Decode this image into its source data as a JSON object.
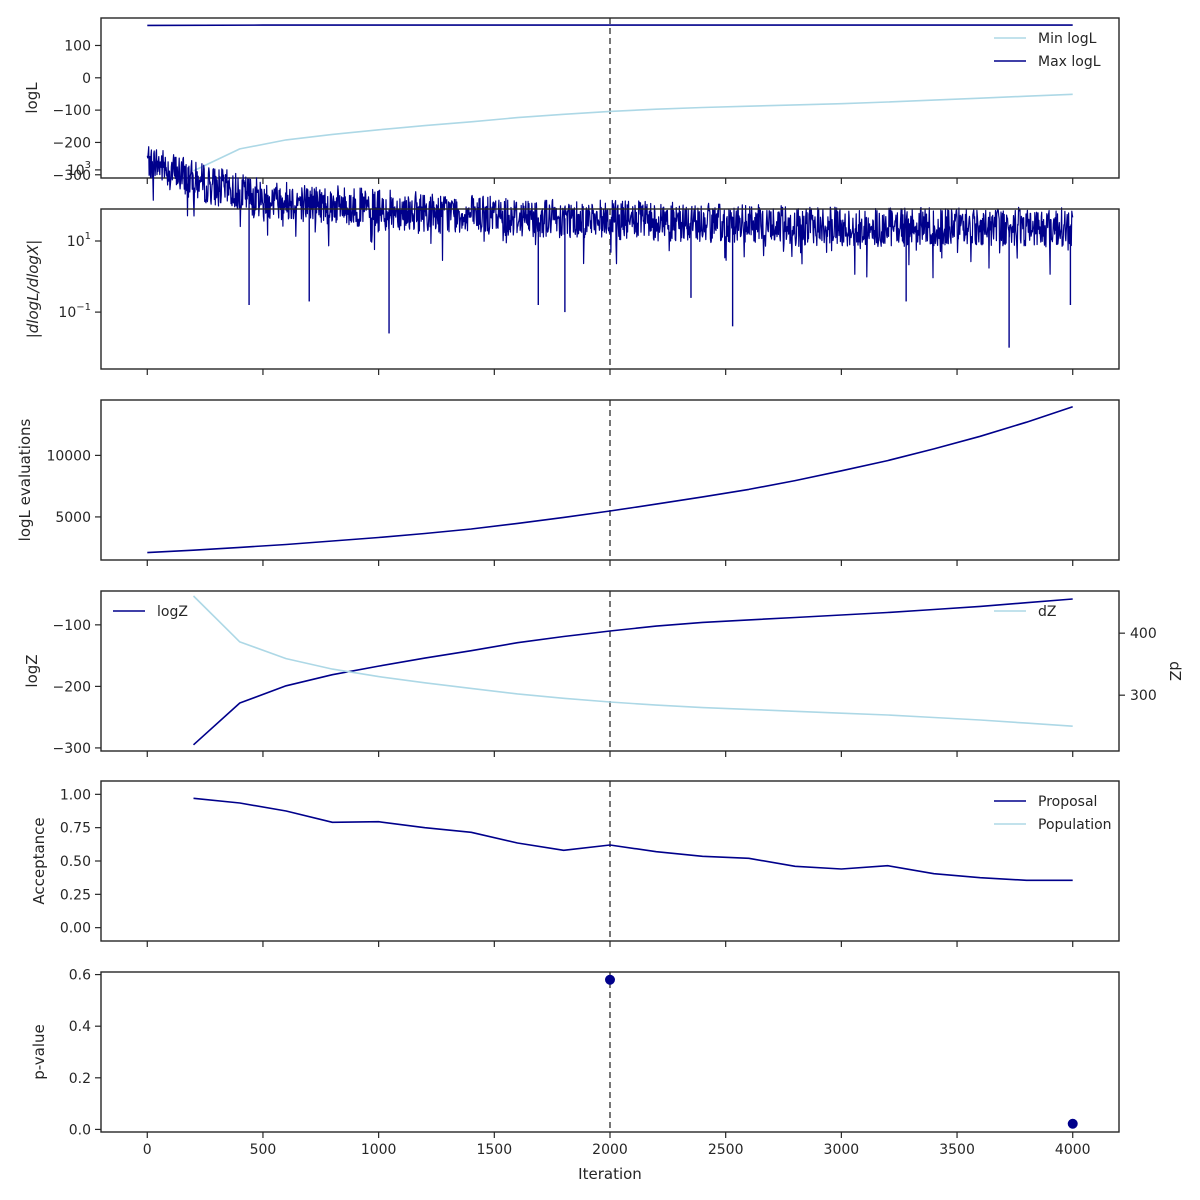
{
  "colors": {
    "dark": "#00008b",
    "light": "#add8e6",
    "marker_line": "#555555",
    "frame": "#262626"
  },
  "xaxis": {
    "label": "Iteration",
    "xlim": [
      -200,
      4200
    ],
    "ticks": [
      0,
      500,
      1000,
      1500,
      2000,
      2500,
      3000,
      3500,
      4000
    ],
    "tick_labels": [
      "0",
      "500",
      "1000",
      "1500",
      "2000",
      "2500",
      "3000",
      "3500",
      "4000"
    ]
  },
  "vline_x": 2000,
  "chart_data": [
    {
      "type": "line",
      "ylabel": "logL",
      "ylim": [
        -310,
        185
      ],
      "yticks": [
        -300,
        -200,
        -100,
        0,
        100
      ],
      "ytick_labels": [
        "−300",
        "−200",
        "−100",
        "0",
        "100"
      ],
      "legend_placement": "top-right",
      "series": [
        {
          "name": "Min logL",
          "color": "light",
          "x": [
            200,
            400,
            600,
            800,
            1000,
            1200,
            1400,
            1600,
            1800,
            2000,
            2200,
            2400,
            2600,
            2800,
            3000,
            3200,
            3400,
            3600,
            3800,
            4000
          ],
          "y": [
            -288,
            -220,
            -192,
            -175,
            -161,
            -148,
            -136,
            -123,
            -113,
            -104,
            -97,
            -92,
            -88,
            -84,
            -80,
            -75,
            -69,
            -63,
            -57,
            -51
          ]
        },
        {
          "name": "Max logL",
          "color": "dark",
          "x": [
            0,
            500,
            1000,
            1500,
            2000,
            2500,
            3000,
            3500,
            4000
          ],
          "y": [
            162,
            163,
            163,
            163,
            163,
            163,
            163,
            163,
            163
          ]
        }
      ]
    },
    {
      "type": "line",
      "ylabel": "|dlogL/dlogX|",
      "yscale": "log",
      "ylim_log10": [
        -2.6,
        1.9
      ],
      "yticks_log10": [
        -1,
        1,
        3
      ],
      "ytick_exponents": [
        "−1",
        "1",
        "3"
      ],
      "ytick_base": "10",
      "series": [
        {
          "name": "",
          "color": "dark",
          "envelope_log10": {
            "x": [
              0,
              200,
              500,
              1000,
              1500,
              2000,
              2500,
              3000,
              3500,
              4000
            ],
            "center": [
              3.3,
              2.7,
              2.2,
              1.9,
              1.7,
              1.6,
              1.5,
              1.4,
              1.4,
              1.4
            ],
            "spread": [
              0.5,
              0.55,
              0.55,
              0.55,
              0.55,
              0.55,
              0.55,
              0.55,
              0.55,
              0.55
            ]
          },
          "dips": [
            {
              "x": 440,
              "log10": -0.8
            },
            {
              "x": 700,
              "log10": -0.7
            },
            {
              "x": 1045,
              "log10": -1.6
            },
            {
              "x": 1690,
              "log10": -0.8
            },
            {
              "x": 1805,
              "log10": -1.0
            },
            {
              "x": 2350,
              "log10": -0.6
            },
            {
              "x": 2530,
              "log10": -1.4
            },
            {
              "x": 3280,
              "log10": -0.7
            },
            {
              "x": 3725,
              "log10": -2.0
            },
            {
              "x": 3990,
              "log10": -0.8
            }
          ]
        }
      ]
    },
    {
      "type": "line",
      "ylabel": "logL evaluations",
      "ylim": [
        1500,
        14500
      ],
      "yticks": [
        5000,
        10000
      ],
      "ytick_labels": [
        "5000",
        "10000"
      ],
      "series": [
        {
          "name": "",
          "color": "dark",
          "x": [
            0,
            200,
            400,
            600,
            800,
            1000,
            1200,
            1400,
            1600,
            1800,
            2000,
            2200,
            2400,
            2600,
            2800,
            3000,
            3200,
            3400,
            3600,
            3800,
            4000
          ],
          "y": [
            2100,
            2300,
            2520,
            2760,
            3040,
            3330,
            3650,
            4020,
            4470,
            4960,
            5480,
            6040,
            6630,
            7240,
            7950,
            8750,
            9580,
            10530,
            11550,
            12700,
            13950
          ]
        }
      ]
    },
    {
      "type": "line",
      "ylabel": "logZ",
      "ylim": [
        -305,
        -45
      ],
      "yticks": [
        -300,
        -200,
        -100
      ],
      "ytick_labels": [
        "−300",
        "−200",
        "−100"
      ],
      "legend_placement": "top-left",
      "series": [
        {
          "name": "logZ",
          "color": "dark",
          "x": [
            200,
            400,
            600,
            800,
            1000,
            1200,
            1400,
            1600,
            1800,
            2000,
            2200,
            2400,
            2600,
            2800,
            3000,
            3200,
            3400,
            3600,
            3800,
            4000
          ],
          "y": [
            -295,
            -227,
            -199,
            -181,
            -167,
            -154,
            -142,
            -129,
            -119,
            -110,
            -102,
            -96,
            -92,
            -88,
            -84,
            -80,
            -75,
            -70,
            -64,
            -58
          ]
        }
      ],
      "twin": {
        "ylabel": "dZ",
        "ylim": [
          210,
          468
        ],
        "yticks": [
          300,
          400
        ],
        "ytick_labels": [
          "300",
          "400"
        ],
        "legend_placement": "top-right",
        "series": [
          {
            "name": "dZ",
            "color": "light",
            "x": [
              200,
              400,
              600,
              800,
              1000,
              1200,
              1400,
              1600,
              1800,
              2000,
              2200,
              2400,
              2600,
              2800,
              3000,
              3200,
              3400,
              3600,
              3800,
              4000
            ],
            "y": [
              460,
              386,
              359,
              342,
              330,
              320,
              311,
              302,
              295,
              289,
              284,
              280,
              277,
              274,
              271,
              268,
              264,
              260,
              255,
              250
            ]
          }
        ]
      }
    },
    {
      "type": "line",
      "ylabel": "Acceptance",
      "ylim": [
        -0.1,
        1.1
      ],
      "yticks": [
        0.0,
        0.25,
        0.5,
        0.75,
        1.0
      ],
      "ytick_labels": [
        "0.00",
        "0.25",
        "0.50",
        "0.75",
        "1.00"
      ],
      "legend_placement": "top-right",
      "series": [
        {
          "name": "Proposal",
          "color": "dark",
          "x": [
            200,
            400,
            600,
            800,
            1000,
            1200,
            1400,
            1600,
            1800,
            2000,
            2200,
            2400,
            2600,
            2800,
            3000,
            3200,
            3400,
            3600,
            3800,
            4000
          ],
          "y": [
            0.97,
            0.935,
            0.875,
            0.79,
            0.795,
            0.75,
            0.715,
            0.635,
            0.58,
            0.62,
            0.57,
            0.535,
            0.52,
            0.46,
            0.44,
            0.465,
            0.405,
            0.375,
            0.355,
            0.355
          ]
        },
        {
          "name": "Population",
          "color": "light",
          "x": [],
          "y": []
        }
      ]
    },
    {
      "type": "scatter",
      "ylabel": "p-value",
      "ylim": [
        -0.01,
        0.61
      ],
      "yticks": [
        0.0,
        0.2,
        0.4,
        0.6
      ],
      "ytick_labels": [
        "0.0",
        "0.2",
        "0.4",
        "0.6"
      ],
      "series": [
        {
          "name": "",
          "color": "dark",
          "x": [
            2000,
            4000
          ],
          "y": [
            0.58,
            0.022
          ]
        }
      ]
    }
  ]
}
